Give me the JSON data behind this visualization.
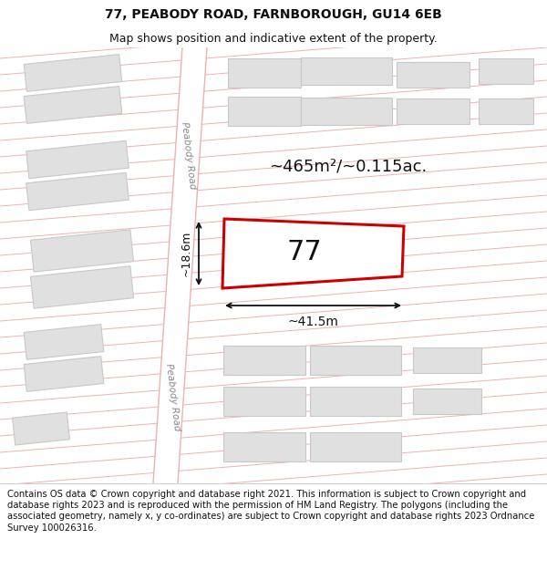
{
  "title": "77, PEABODY ROAD, FARNBOROUGH, GU14 6EB",
  "subtitle": "Map shows position and indicative extent of the property.",
  "area_label": "~465m²/~0.115ac.",
  "number_label": "77",
  "width_label": "~41.5m",
  "height_label": "~18.6m",
  "road_label": "Peabody Road",
  "footer": "Contains OS data © Crown copyright and database right 2021. This information is subject to Crown copyright and database rights 2023 and is reproduced with the permission of HM Land Registry. The polygons (including the associated geometry, namely x, y co-ordinates) are subject to Crown copyright and database rights 2023 Ordnance Survey 100026316.",
  "map_bg": "#ffffff",
  "block_face": "#e0e0e0",
  "block_edge": "#c8c8c8",
  "road_line_color": "#f0b0b0",
  "highlight": "#cc0000",
  "text_dark": "#111111",
  "text_road": "#888888",
  "dim_color": "#111111",
  "title_size": 10,
  "subtitle_size": 9
}
